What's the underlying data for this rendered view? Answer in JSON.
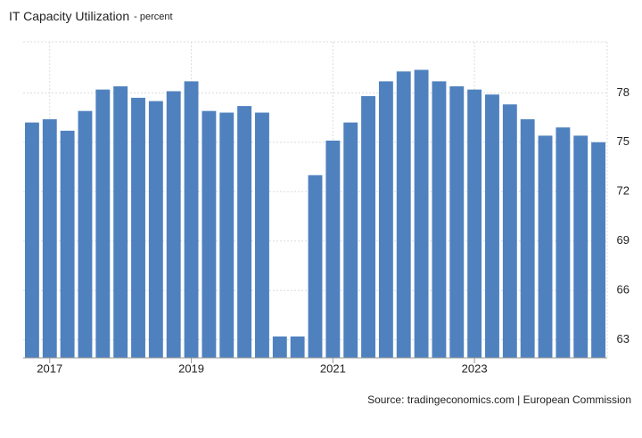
{
  "chart_data": {
    "type": "bar",
    "title": "IT Capacity Utilization",
    "subtitle": "- percent",
    "source": "Source: tradingeconomics.com | European Commission",
    "categories": [
      null,
      "2017",
      null,
      null,
      null,
      null,
      null,
      null,
      null,
      "2019",
      null,
      null,
      null,
      null,
      null,
      null,
      null,
      "2021",
      null,
      null,
      null,
      null,
      null,
      null,
      null,
      "2023",
      null,
      null,
      null,
      null,
      null,
      null,
      null
    ],
    "values": [
      76.2,
      76.4,
      75.7,
      76.9,
      78.2,
      78.4,
      77.7,
      77.5,
      78.1,
      78.7,
      76.9,
      76.8,
      77.2,
      76.8,
      63.2,
      63.2,
      73.0,
      75.1,
      76.2,
      77.8,
      78.7,
      79.3,
      79.4,
      78.7,
      78.4,
      78.2,
      77.9,
      77.3,
      76.4,
      75.4,
      75.9,
      75.4,
      75.0
    ],
    "color": "#4f81bf",
    "ylim": [
      61.9,
      81.1
    ],
    "yticks": [
      63,
      66,
      69,
      72,
      75,
      78
    ],
    "grid": true
  }
}
